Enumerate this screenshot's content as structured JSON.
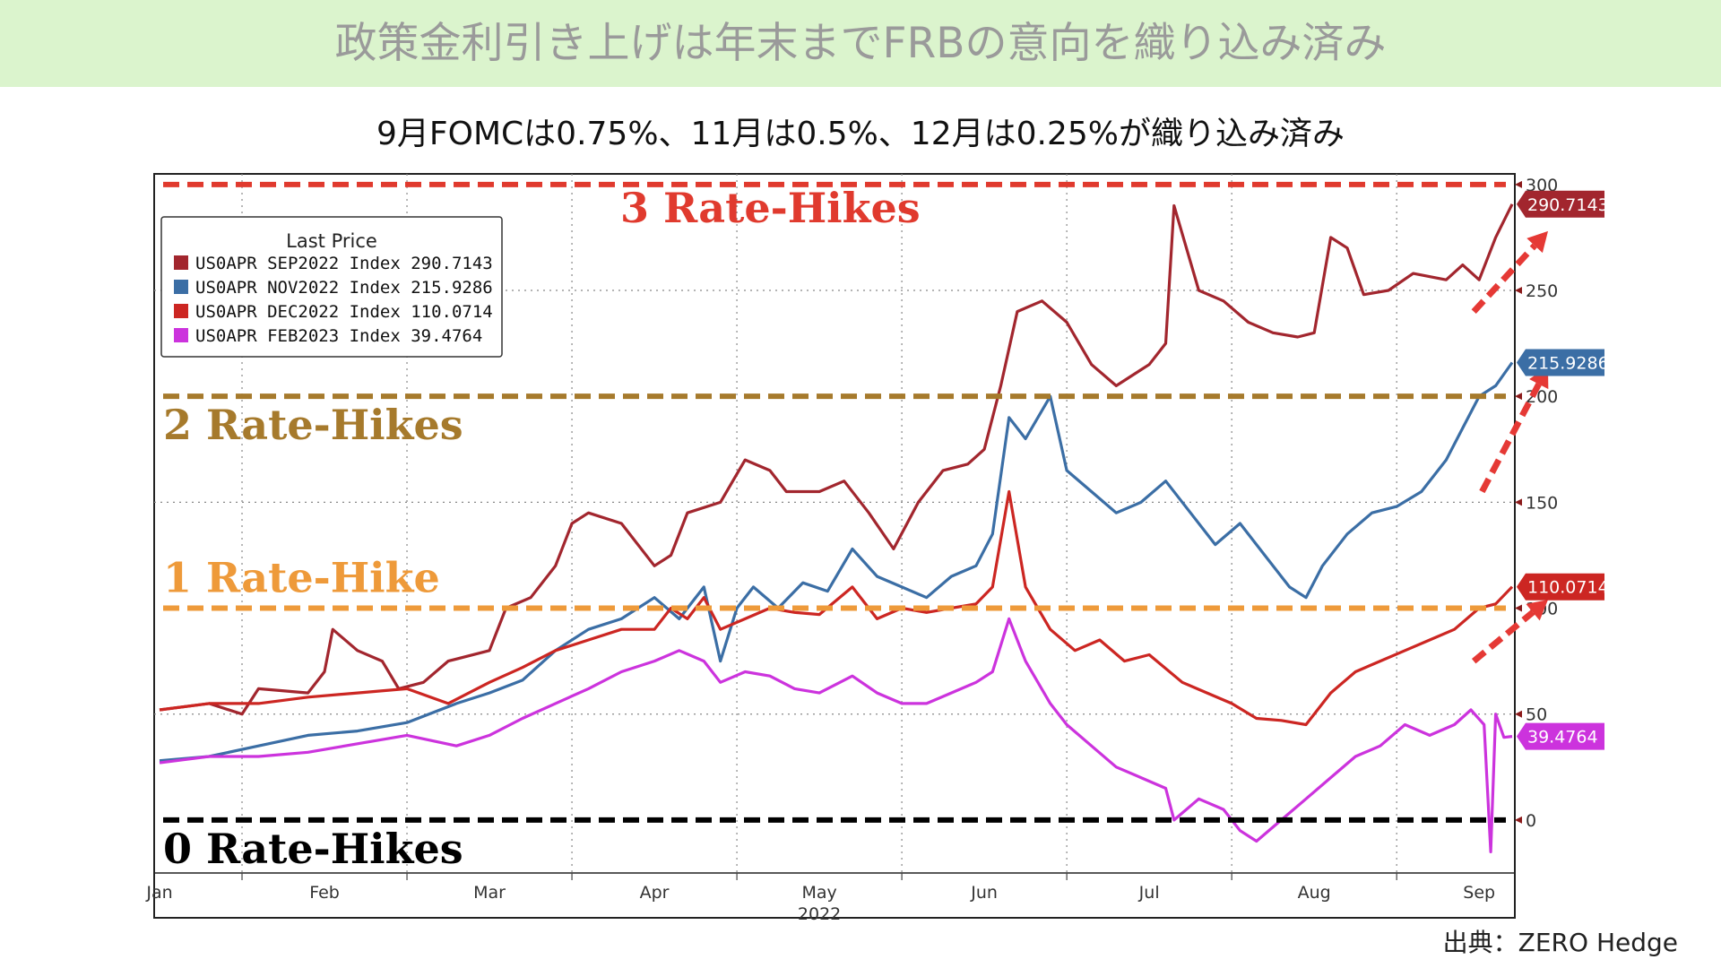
{
  "banner": {
    "title": "政策金利引き上げは年末までFRBの意向を織り込み済み"
  },
  "subtitle": "9月FOMCは0.75%、11月は0.5%、12月は0.25%が織り込み済み",
  "source": "出典：ZERO Hedge",
  "colors": {
    "banner_bg": "#dbf4cd",
    "sep": "#a2262e",
    "nov": "#3b6ea5",
    "dec": "#cc2622",
    "feb": "#cc33dd",
    "hike3": "#e03a2e",
    "hike2": "#a67a2c",
    "hike1": "#ee9a3a",
    "hike0": "#000000",
    "arrow": "#e53935"
  },
  "chart_data": {
    "type": "line",
    "title": "",
    "xlabel": "2022",
    "ylabel": "",
    "ylim": [
      -25,
      305
    ],
    "y_ticks": [
      "0",
      "50",
      "100",
      "150",
      "200",
      "250",
      "300"
    ],
    "x_ticks": [
      "Jan",
      "Feb",
      "Mar",
      "Apr",
      "May",
      "Jun",
      "Jul",
      "Aug",
      "Sep"
    ],
    "x_range": [
      0,
      8.2
    ],
    "legend": {
      "title": "Last Price",
      "position": "top-left"
    },
    "reference_lines": [
      {
        "label": "3 Rate-Hikes",
        "y": 300,
        "color_key": "hike3"
      },
      {
        "label": "2 Rate-Hikes",
        "y": 200,
        "color_key": "hike2"
      },
      {
        "label": "1 Rate-Hike",
        "y": 100,
        "color_key": "hike1"
      },
      {
        "label": "0 Rate-Hikes",
        "y": 0,
        "color_key": "hike0"
      }
    ],
    "series": [
      {
        "name": "US0APR SEP2022 Index",
        "last_price": "290.7143",
        "color_key": "sep",
        "points": [
          [
            0,
            52
          ],
          [
            0.3,
            55
          ],
          [
            0.5,
            50
          ],
          [
            0.6,
            62
          ],
          [
            0.9,
            60
          ],
          [
            1.0,
            70
          ],
          [
            1.05,
            90
          ],
          [
            1.2,
            80
          ],
          [
            1.35,
            75
          ],
          [
            1.45,
            62
          ],
          [
            1.6,
            65
          ],
          [
            1.75,
            75
          ],
          [
            2.0,
            80
          ],
          [
            2.1,
            100
          ],
          [
            2.25,
            105
          ],
          [
            2.4,
            120
          ],
          [
            2.5,
            140
          ],
          [
            2.6,
            145
          ],
          [
            2.8,
            140
          ],
          [
            3.0,
            120
          ],
          [
            3.1,
            125
          ],
          [
            3.2,
            145
          ],
          [
            3.4,
            150
          ],
          [
            3.55,
            170
          ],
          [
            3.7,
            165
          ],
          [
            3.8,
            155
          ],
          [
            4.0,
            155
          ],
          [
            4.15,
            160
          ],
          [
            4.3,
            145
          ],
          [
            4.45,
            128
          ],
          [
            4.6,
            150
          ],
          [
            4.75,
            165
          ],
          [
            4.9,
            168
          ],
          [
            5.0,
            175
          ],
          [
            5.1,
            205
          ],
          [
            5.2,
            240
          ],
          [
            5.35,
            245
          ],
          [
            5.5,
            235
          ],
          [
            5.65,
            215
          ],
          [
            5.8,
            205
          ],
          [
            5.9,
            210
          ],
          [
            6.0,
            215
          ],
          [
            6.1,
            225
          ],
          [
            6.15,
            290
          ],
          [
            6.3,
            250
          ],
          [
            6.45,
            245
          ],
          [
            6.6,
            235
          ],
          [
            6.75,
            230
          ],
          [
            6.9,
            228
          ],
          [
            7.0,
            230
          ],
          [
            7.1,
            275
          ],
          [
            7.2,
            270
          ],
          [
            7.3,
            248
          ],
          [
            7.45,
            250
          ],
          [
            7.6,
            258
          ],
          [
            7.8,
            255
          ],
          [
            7.9,
            262
          ],
          [
            8.0,
            255
          ],
          [
            8.1,
            275
          ],
          [
            8.2,
            290.71
          ]
        ]
      },
      {
        "name": "US0APR NOV2022 Index",
        "last_price": "215.9286",
        "color_key": "nov",
        "points": [
          [
            0,
            28
          ],
          [
            0.3,
            30
          ],
          [
            0.6,
            35
          ],
          [
            0.9,
            40
          ],
          [
            1.2,
            42
          ],
          [
            1.5,
            46
          ],
          [
            1.8,
            55
          ],
          [
            2.0,
            60
          ],
          [
            2.2,
            66
          ],
          [
            2.4,
            80
          ],
          [
            2.6,
            90
          ],
          [
            2.8,
            95
          ],
          [
            3.0,
            105
          ],
          [
            3.15,
            95
          ],
          [
            3.3,
            110
          ],
          [
            3.4,
            75
          ],
          [
            3.5,
            100
          ],
          [
            3.6,
            110
          ],
          [
            3.75,
            100
          ],
          [
            3.9,
            112
          ],
          [
            4.05,
            108
          ],
          [
            4.2,
            128
          ],
          [
            4.35,
            115
          ],
          [
            4.5,
            110
          ],
          [
            4.65,
            105
          ],
          [
            4.8,
            115
          ],
          [
            4.95,
            120
          ],
          [
            5.05,
            135
          ],
          [
            5.15,
            190
          ],
          [
            5.25,
            180
          ],
          [
            5.4,
            200
          ],
          [
            5.5,
            165
          ],
          [
            5.65,
            155
          ],
          [
            5.8,
            145
          ],
          [
            5.95,
            150
          ],
          [
            6.1,
            160
          ],
          [
            6.25,
            145
          ],
          [
            6.4,
            130
          ],
          [
            6.55,
            140
          ],
          [
            6.7,
            125
          ],
          [
            6.85,
            110
          ],
          [
            6.95,
            105
          ],
          [
            7.05,
            120
          ],
          [
            7.2,
            135
          ],
          [
            7.35,
            145
          ],
          [
            7.5,
            148
          ],
          [
            7.65,
            155
          ],
          [
            7.8,
            170
          ],
          [
            7.9,
            185
          ],
          [
            8.0,
            200
          ],
          [
            8.1,
            205
          ],
          [
            8.2,
            215.93
          ]
        ]
      },
      {
        "name": "US0APR DEC2022 Index",
        "last_price": "110.0714",
        "color_key": "dec",
        "points": [
          [
            0,
            52
          ],
          [
            0.3,
            55
          ],
          [
            0.6,
            55
          ],
          [
            0.9,
            58
          ],
          [
            1.2,
            60
          ],
          [
            1.5,
            62
          ],
          [
            1.75,
            55
          ],
          [
            2.0,
            65
          ],
          [
            2.2,
            72
          ],
          [
            2.4,
            80
          ],
          [
            2.6,
            85
          ],
          [
            2.8,
            90
          ],
          [
            3.0,
            90
          ],
          [
            3.1,
            100
          ],
          [
            3.2,
            95
          ],
          [
            3.3,
            105
          ],
          [
            3.4,
            90
          ],
          [
            3.55,
            95
          ],
          [
            3.7,
            100
          ],
          [
            3.85,
            98
          ],
          [
            4.0,
            97
          ],
          [
            4.2,
            110
          ],
          [
            4.35,
            95
          ],
          [
            4.5,
            100
          ],
          [
            4.65,
            98
          ],
          [
            4.8,
            100
          ],
          [
            4.95,
            102
          ],
          [
            5.05,
            110
          ],
          [
            5.15,
            155
          ],
          [
            5.25,
            110
          ],
          [
            5.4,
            90
          ],
          [
            5.55,
            80
          ],
          [
            5.7,
            85
          ],
          [
            5.85,
            75
          ],
          [
            6.0,
            78
          ],
          [
            6.2,
            65
          ],
          [
            6.35,
            60
          ],
          [
            6.5,
            55
          ],
          [
            6.65,
            48
          ],
          [
            6.8,
            47
          ],
          [
            6.95,
            45
          ],
          [
            7.1,
            60
          ],
          [
            7.25,
            70
          ],
          [
            7.4,
            75
          ],
          [
            7.55,
            80
          ],
          [
            7.7,
            85
          ],
          [
            7.85,
            90
          ],
          [
            8.0,
            100
          ],
          [
            8.1,
            102
          ],
          [
            8.2,
            110.07
          ]
        ]
      },
      {
        "name": "US0APR FEB2023 Index",
        "last_price": "39.4764",
        "color_key": "feb",
        "points": [
          [
            0,
            27
          ],
          [
            0.3,
            30
          ],
          [
            0.6,
            30
          ],
          [
            0.9,
            32
          ],
          [
            1.2,
            36
          ],
          [
            1.5,
            40
          ],
          [
            1.8,
            35
          ],
          [
            2.0,
            40
          ],
          [
            2.2,
            48
          ],
          [
            2.4,
            55
          ],
          [
            2.6,
            62
          ],
          [
            2.8,
            70
          ],
          [
            3.0,
            75
          ],
          [
            3.15,
            80
          ],
          [
            3.3,
            75
          ],
          [
            3.4,
            65
          ],
          [
            3.55,
            70
          ],
          [
            3.7,
            68
          ],
          [
            3.85,
            62
          ],
          [
            4.0,
            60
          ],
          [
            4.2,
            68
          ],
          [
            4.35,
            60
          ],
          [
            4.5,
            55
          ],
          [
            4.65,
            55
          ],
          [
            4.8,
            60
          ],
          [
            4.95,
            65
          ],
          [
            5.05,
            70
          ],
          [
            5.15,
            95
          ],
          [
            5.25,
            75
          ],
          [
            5.4,
            55
          ],
          [
            5.5,
            45
          ],
          [
            5.65,
            35
          ],
          [
            5.8,
            25
          ],
          [
            5.95,
            20
          ],
          [
            6.1,
            15
          ],
          [
            6.15,
            0
          ],
          [
            6.3,
            10
          ],
          [
            6.45,
            5
          ],
          [
            6.55,
            -5
          ],
          [
            6.65,
            -10
          ],
          [
            6.8,
            0
          ],
          [
            6.95,
            10
          ],
          [
            7.1,
            20
          ],
          [
            7.25,
            30
          ],
          [
            7.4,
            35
          ],
          [
            7.55,
            45
          ],
          [
            7.7,
            40
          ],
          [
            7.85,
            45
          ],
          [
            7.95,
            52
          ],
          [
            8.03,
            45
          ],
          [
            8.07,
            -15
          ],
          [
            8.1,
            50
          ],
          [
            8.15,
            39
          ],
          [
            8.2,
            39.48
          ]
        ]
      }
    ]
  }
}
